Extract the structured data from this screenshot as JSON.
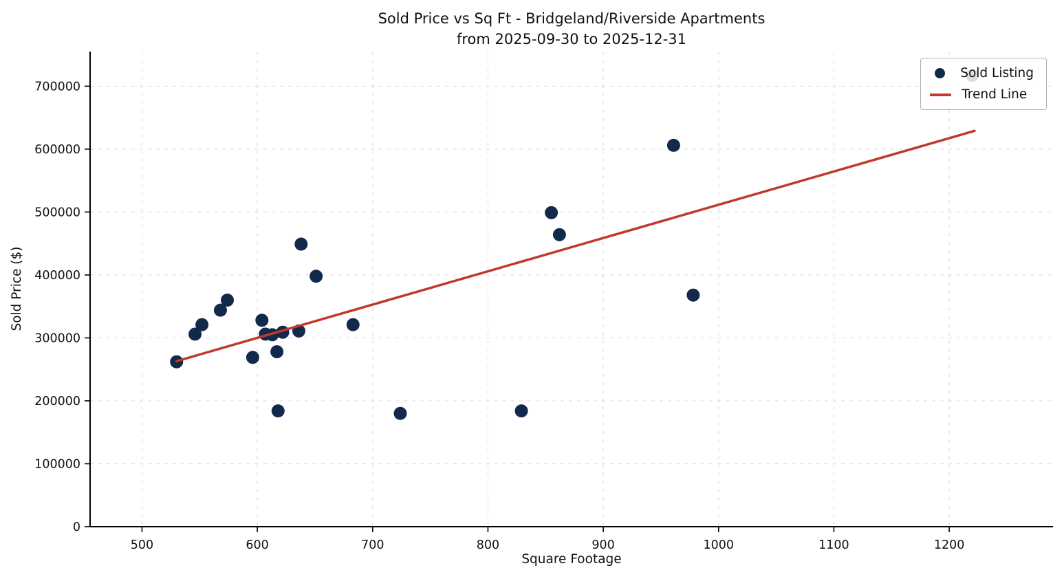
{
  "chart_data": {
    "type": "scatter",
    "title": "Sold Price vs Sq Ft - Bridgeland/Riverside Apartments",
    "subtitle": "from 2025-09-30 to 2025-12-31",
    "xlabel": "Square Footage",
    "ylabel": "Sold Price ($)",
    "xlim": [
      455,
      1290
    ],
    "ylim": [
      0,
      755000
    ],
    "xticks": [
      500,
      600,
      700,
      800,
      900,
      1000,
      1100,
      1200
    ],
    "yticks": [
      0,
      100000,
      200000,
      300000,
      400000,
      500000,
      600000,
      700000
    ],
    "grid": true,
    "legend_position": "upper-right",
    "series": [
      {
        "name": "Sold Listing",
        "type": "scatter",
        "color": "#13294b",
        "points": [
          [
            530,
            262000
          ],
          [
            546,
            306000
          ],
          [
            552,
            321000
          ],
          [
            568,
            344000
          ],
          [
            574,
            360000
          ],
          [
            596,
            269000
          ],
          [
            604,
            328000
          ],
          [
            607,
            306000
          ],
          [
            613,
            305000
          ],
          [
            617,
            278000
          ],
          [
            618,
            184000
          ],
          [
            622,
            309000
          ],
          [
            636,
            311000
          ],
          [
            638,
            449000
          ],
          [
            651,
            398000
          ],
          [
            683,
            321000
          ],
          [
            724,
            180000
          ],
          [
            829,
            184000
          ],
          [
            855,
            499000
          ],
          [
            862,
            464000
          ],
          [
            961,
            606000
          ],
          [
            978,
            368000
          ],
          [
            1220,
            717000
          ]
        ]
      },
      {
        "name": "Trend Line",
        "type": "line",
        "color": "#c0392b",
        "points": [
          [
            530,
            263000
          ],
          [
            1222,
            629000
          ]
        ]
      }
    ],
    "legend": [
      {
        "label": "Sold Listing",
        "marker": "dot",
        "color": "#13294b"
      },
      {
        "label": "Trend Line",
        "marker": "line",
        "color": "#c0392b"
      }
    ]
  }
}
